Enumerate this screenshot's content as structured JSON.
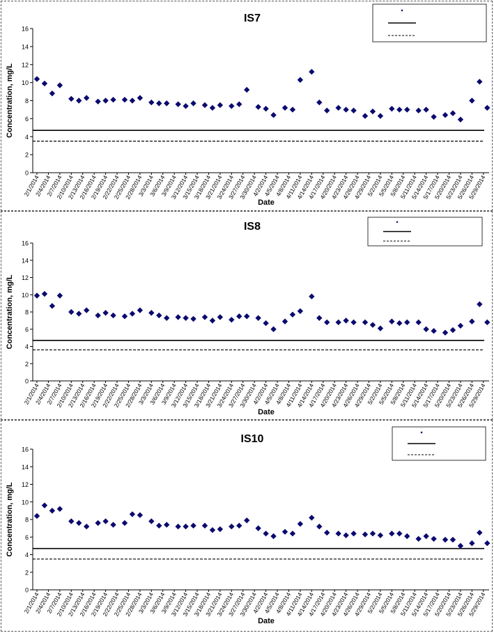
{
  "colors": {
    "marker": "#0a0a6e",
    "line": "#000000"
  },
  "chart_data": [
    {
      "type": "scatter",
      "title": "IS7",
      "xlabel": "Date",
      "ylabel": "Concentration, mg/L",
      "ylim": [
        0,
        16
      ],
      "yticks": [
        "0",
        "2",
        "4",
        "6",
        "8",
        "10",
        "12",
        "14",
        "16"
      ],
      "grid": false,
      "legend_placement": "top-right",
      "xticks": [
        "2/1/2014",
        "2/4/2014",
        "2/7/2014",
        "2/10/2014",
        "2/13/2014",
        "2/16/2014",
        "2/19/2014",
        "2/22/2014",
        "2/25/2014",
        "2/28/2014",
        "3/3/2014",
        "3/6/2014",
        "3/9/2014",
        "3/12/2014",
        "3/15/2014",
        "3/18/2014",
        "3/21/2014",
        "3/24/2014",
        "3/27/2014",
        "3/30/2014",
        "4/2/2014",
        "4/5/2014",
        "4/8/2014",
        "4/11/2014",
        "4/14/2014",
        "4/17/2014",
        "4/20/2014",
        "4/23/2014",
        "4/26/2014",
        "4/29/2014",
        "5/2/2014",
        "5/5/2014",
        "5/8/2014",
        "5/11/2014",
        "5/14/2014",
        "5/17/2014",
        "5/20/2014",
        "5/23/2014",
        "5/26/2014",
        "5/29/2014"
      ],
      "points": [
        [
          "2/1/2014",
          10.4
        ],
        [
          "2/3/2014",
          9.9
        ],
        [
          "2/5/2014",
          8.8
        ],
        [
          "2/7/2014",
          9.7
        ],
        [
          "2/10/2014",
          8.2
        ],
        [
          "2/12/2014",
          8.0
        ],
        [
          "2/14/2014",
          8.3
        ],
        [
          "2/17/2014",
          7.9
        ],
        [
          "2/19/2014",
          8.0
        ],
        [
          "2/21/2014",
          8.1
        ],
        [
          "2/24/2014",
          8.1
        ],
        [
          "2/26/2014",
          8.0
        ],
        [
          "2/28/2014",
          8.3
        ],
        [
          "3/3/2014",
          7.8
        ],
        [
          "3/5/2014",
          7.7
        ],
        [
          "3/7/2014",
          7.7
        ],
        [
          "3/10/2014",
          7.6
        ],
        [
          "3/12/2014",
          7.4
        ],
        [
          "3/14/2014",
          7.7
        ],
        [
          "3/17/2014",
          7.5
        ],
        [
          "3/19/2014",
          7.2
        ],
        [
          "3/21/2014",
          7.5
        ],
        [
          "3/24/2014",
          7.4
        ],
        [
          "3/26/2014",
          7.6
        ],
        [
          "3/28/2014",
          9.2
        ],
        [
          "3/31/2014",
          7.3
        ],
        [
          "4/2/2014",
          7.1
        ],
        [
          "4/4/2014",
          6.4
        ],
        [
          "4/7/2014",
          7.2
        ],
        [
          "4/9/2014",
          7.0
        ],
        [
          "4/11/2014",
          10.3
        ],
        [
          "4/14/2014",
          11.2
        ],
        [
          "4/16/2014",
          7.8
        ],
        [
          "4/18/2014",
          6.9
        ],
        [
          "4/21/2014",
          7.2
        ],
        [
          "4/23/2014",
          7.0
        ],
        [
          "4/25/2014",
          6.9
        ],
        [
          "4/28/2014",
          6.3
        ],
        [
          "4/30/2014",
          6.8
        ],
        [
          "5/2/2014",
          6.3
        ],
        [
          "5/5/2014",
          7.1
        ],
        [
          "5/7/2014",
          7.0
        ],
        [
          "5/9/2014",
          7.0
        ],
        [
          "5/12/2014",
          6.9
        ],
        [
          "5/14/2014",
          7.0
        ],
        [
          "5/16/2014",
          6.2
        ],
        [
          "5/19/2014",
          6.4
        ],
        [
          "5/21/2014",
          6.6
        ],
        [
          "5/23/2014",
          5.9
        ],
        [
          "5/26/2014",
          8.0
        ],
        [
          "5/28/2014",
          10.1
        ],
        [
          "5/30/2014",
          7.2
        ]
      ],
      "reference_lines": [
        {
          "style": "solid",
          "value": 4.7
        },
        {
          "style": "dashed",
          "value": 3.5
        }
      ]
    },
    {
      "type": "scatter",
      "title": "IS8",
      "xlabel": "Date",
      "ylabel": "Concentration, mg/L",
      "ylim": [
        0,
        16
      ],
      "yticks": [
        "0",
        "2",
        "4",
        "6",
        "8",
        "10",
        "12",
        "14",
        "16"
      ],
      "grid": false,
      "legend_placement": "top-right",
      "xticks": [
        "2/1/2014",
        "2/4/2014",
        "2/7/2014",
        "2/10/2014",
        "2/13/2014",
        "2/16/2014",
        "2/19/2014",
        "2/22/2014",
        "2/25/2014",
        "2/28/2014",
        "3/3/2014",
        "3/6/2014",
        "3/9/2014",
        "3/12/2014",
        "3/15/2014",
        "3/18/2014",
        "3/21/2014",
        "3/24/2014",
        "3/27/2014",
        "3/30/2014",
        "4/2/2014",
        "4/5/2014",
        "4/8/2014",
        "4/11/2014",
        "4/14/2014",
        "4/17/2014",
        "4/20/2014",
        "4/23/2014",
        "4/26/2014",
        "4/29/2014",
        "5/2/2014",
        "5/5/2014",
        "5/8/2014",
        "5/11/2014",
        "5/14/2014",
        "5/17/2014",
        "5/20/2014",
        "5/23/2014",
        "5/26/2014",
        "5/29/2014"
      ],
      "points": [
        [
          "2/1/2014",
          9.9
        ],
        [
          "2/3/2014",
          10.1
        ],
        [
          "2/5/2014",
          8.7
        ],
        [
          "2/7/2014",
          9.9
        ],
        [
          "2/10/2014",
          8.0
        ],
        [
          "2/12/2014",
          7.8
        ],
        [
          "2/14/2014",
          8.2
        ],
        [
          "2/17/2014",
          7.6
        ],
        [
          "2/19/2014",
          7.9
        ],
        [
          "2/21/2014",
          7.6
        ],
        [
          "2/24/2014",
          7.5
        ],
        [
          "2/26/2014",
          7.8
        ],
        [
          "2/28/2014",
          8.2
        ],
        [
          "3/3/2014",
          7.9
        ],
        [
          "3/5/2014",
          7.6
        ],
        [
          "3/7/2014",
          7.3
        ],
        [
          "3/10/2014",
          7.4
        ],
        [
          "3/12/2014",
          7.3
        ],
        [
          "3/14/2014",
          7.2
        ],
        [
          "3/17/2014",
          7.4
        ],
        [
          "3/19/2014",
          7.0
        ],
        [
          "3/21/2014",
          7.4
        ],
        [
          "3/24/2014",
          7.1
        ],
        [
          "3/26/2014",
          7.5
        ],
        [
          "3/28/2014",
          7.5
        ],
        [
          "3/31/2014",
          7.3
        ],
        [
          "4/2/2014",
          6.7
        ],
        [
          "4/4/2014",
          6.0
        ],
        [
          "4/7/2014",
          6.9
        ],
        [
          "4/9/2014",
          7.7
        ],
        [
          "4/11/2014",
          8.1
        ],
        [
          "4/14/2014",
          9.8
        ],
        [
          "4/16/2014",
          7.3
        ],
        [
          "4/18/2014",
          6.8
        ],
        [
          "4/21/2014",
          6.8
        ],
        [
          "4/23/2014",
          7.0
        ],
        [
          "4/25/2014",
          6.8
        ],
        [
          "4/28/2014",
          6.8
        ],
        [
          "4/30/2014",
          6.5
        ],
        [
          "5/2/2014",
          6.1
        ],
        [
          "5/5/2014",
          6.9
        ],
        [
          "5/7/2014",
          6.7
        ],
        [
          "5/9/2014",
          6.8
        ],
        [
          "5/12/2014",
          6.8
        ],
        [
          "5/14/2014",
          6.0
        ],
        [
          "5/16/2014",
          5.8
        ],
        [
          "5/19/2014",
          5.6
        ],
        [
          "5/21/2014",
          5.9
        ],
        [
          "5/23/2014",
          6.4
        ],
        [
          "5/26/2014",
          6.9
        ],
        [
          "5/28/2014",
          8.9
        ],
        [
          "5/30/2014",
          6.8
        ]
      ],
      "reference_lines": [
        {
          "style": "solid",
          "value": 4.7
        },
        {
          "style": "dashed",
          "value": 3.6
        }
      ]
    },
    {
      "type": "scatter",
      "title": "IS10",
      "xlabel": "Date",
      "ylabel": "Concentration, mg/L",
      "ylim": [
        0,
        16
      ],
      "yticks": [
        "0",
        "2",
        "4",
        "6",
        "8",
        "10",
        "12",
        "14",
        "16"
      ],
      "grid": false,
      "legend_placement": "top-right",
      "xticks": [
        "2/1/2014",
        "2/4/2014",
        "2/7/2014",
        "2/10/2014",
        "2/13/2014",
        "2/16/2014",
        "2/19/2014",
        "2/22/2014",
        "2/25/2014",
        "2/28/2014",
        "3/3/2014",
        "3/6/2014",
        "3/9/2014",
        "3/12/2014",
        "3/15/2014",
        "3/18/2014",
        "3/21/2014",
        "3/24/2014",
        "3/27/2014",
        "3/30/2014",
        "4/2/2014",
        "4/5/2014",
        "4/8/2014",
        "4/11/2014",
        "4/14/2014",
        "4/17/2014",
        "4/20/2014",
        "4/23/2014",
        "4/26/2014",
        "4/29/2014",
        "5/2/2014",
        "5/5/2014",
        "5/8/2014",
        "5/11/2014",
        "5/14/2014",
        "5/17/2014",
        "5/20/2014",
        "5/23/2014",
        "5/26/2014",
        "5/29/2014"
      ],
      "points": [
        [
          "2/1/2014",
          8.4
        ],
        [
          "2/3/2014",
          9.6
        ],
        [
          "2/5/2014",
          9.0
        ],
        [
          "2/7/2014",
          9.2
        ],
        [
          "2/10/2014",
          7.8
        ],
        [
          "2/12/2014",
          7.6
        ],
        [
          "2/14/2014",
          7.2
        ],
        [
          "2/17/2014",
          7.6
        ],
        [
          "2/19/2014",
          7.8
        ],
        [
          "2/21/2014",
          7.4
        ],
        [
          "2/24/2014",
          7.6
        ],
        [
          "2/26/2014",
          8.6
        ],
        [
          "2/28/2014",
          8.5
        ],
        [
          "3/3/2014",
          7.8
        ],
        [
          "3/5/2014",
          7.3
        ],
        [
          "3/7/2014",
          7.4
        ],
        [
          "3/10/2014",
          7.2
        ],
        [
          "3/12/2014",
          7.2
        ],
        [
          "3/14/2014",
          7.3
        ],
        [
          "3/17/2014",
          7.3
        ],
        [
          "3/19/2014",
          6.8
        ],
        [
          "3/21/2014",
          6.9
        ],
        [
          "3/24/2014",
          7.2
        ],
        [
          "3/26/2014",
          7.3
        ],
        [
          "3/28/2014",
          7.9
        ],
        [
          "3/31/2014",
          7.0
        ],
        [
          "4/2/2014",
          6.4
        ],
        [
          "4/4/2014",
          6.1
        ],
        [
          "4/7/2014",
          6.6
        ],
        [
          "4/9/2014",
          6.4
        ],
        [
          "4/11/2014",
          7.5
        ],
        [
          "4/14/2014",
          8.2
        ],
        [
          "4/16/2014",
          7.2
        ],
        [
          "4/18/2014",
          6.5
        ],
        [
          "4/21/2014",
          6.4
        ],
        [
          "4/23/2014",
          6.2
        ],
        [
          "4/25/2014",
          6.4
        ],
        [
          "4/28/2014",
          6.3
        ],
        [
          "4/30/2014",
          6.4
        ],
        [
          "5/2/2014",
          6.2
        ],
        [
          "5/5/2014",
          6.4
        ],
        [
          "5/7/2014",
          6.4
        ],
        [
          "5/9/2014",
          6.1
        ],
        [
          "5/12/2014",
          5.8
        ],
        [
          "5/14/2014",
          6.1
        ],
        [
          "5/16/2014",
          5.8
        ],
        [
          "5/19/2014",
          5.7
        ],
        [
          "5/21/2014",
          5.7
        ],
        [
          "5/23/2014",
          5.0
        ],
        [
          "5/26/2014",
          5.3
        ],
        [
          "5/28/2014",
          6.5
        ],
        [
          "5/30/2014",
          5.3
        ]
      ],
      "reference_lines": [
        {
          "style": "solid",
          "value": 4.7
        },
        {
          "style": "dashed",
          "value": 3.5
        }
      ]
    }
  ]
}
